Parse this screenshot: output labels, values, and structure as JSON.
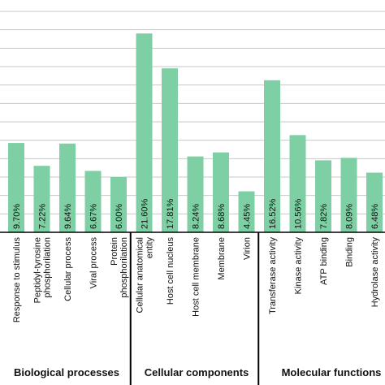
{
  "chart_data": {
    "type": "bar",
    "bar_color": "#7fcfa4",
    "categories": [
      "Response to stimulus",
      "Peptidyl-tyrosine phosphorilation",
      "Cellular process",
      "Viral process",
      "Protein phosphorilation",
      "Cellular anatomical entity",
      "Host cell nucleus",
      "Host cell membrane",
      "Membrane",
      "Virion",
      "Transferase activity",
      "Kinase activity",
      "ATP binding",
      "Binding",
      "Hydrolase activity"
    ],
    "values": [
      9.7,
      7.22,
      9.64,
      6.67,
      6.0,
      21.6,
      17.81,
      8.24,
      8.68,
      4.45,
      16.52,
      10.56,
      7.82,
      8.09,
      6.48
    ],
    "value_labels": [
      "9.70%",
      "7.22%",
      "9.64%",
      "6.67%",
      "6.00%",
      "21.60%",
      "17.81%",
      "8.24%",
      "8.68%",
      "4.45%",
      "16.52%",
      "10.56%",
      "7.82%",
      "8.09%",
      "6.48%"
    ],
    "groups": [
      {
        "name": "Biological processes",
        "start": 0,
        "end": 4
      },
      {
        "name": "Cellular components",
        "start": 5,
        "end": 9
      },
      {
        "name": "Molecular functions",
        "start": 10,
        "end": 14
      }
    ],
    "ylim": [
      0,
      24
    ],
    "grid": true
  }
}
